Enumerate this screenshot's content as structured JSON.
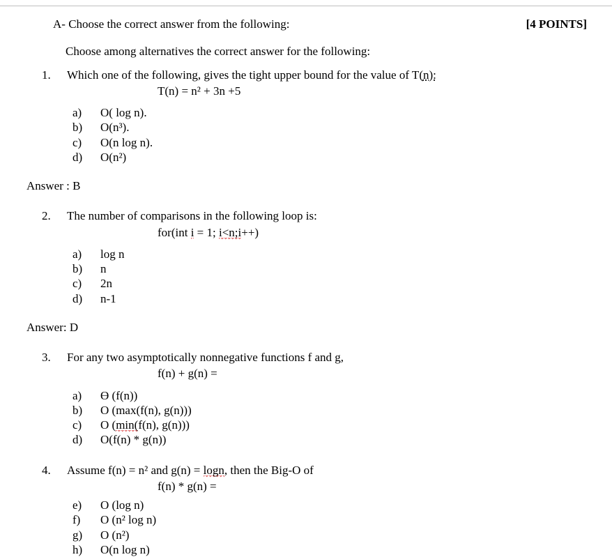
{
  "header": {
    "section_label": "A- Choose the correct answer from the following:",
    "points": "[4 POINTS]"
  },
  "instruction": "Choose among alternatives the correct answer for the following:",
  "q1": {
    "num": "1.",
    "text_pre": "Which one of the following, gives the tight upper bound for the value of T(",
    "text_n": "n):",
    "equation": "T(n) = n² + 3n +5",
    "opts": {
      "a": {
        "label": "a)",
        "text": "O( log n)."
      },
      "b": {
        "label": "b)",
        "text": "O(n³)."
      },
      "c": {
        "label": "c)",
        "text": "O(n log n)."
      },
      "d": {
        "label": "d)",
        "text": "O(n²)"
      }
    },
    "answer": "Answer : B"
  },
  "q2": {
    "num": "2.",
    "text": "The number of comparisons in the following loop is:",
    "equation_pre": "for(int ",
    "equation_i": "i",
    "equation_mid": " = 1; ",
    "equation_in": "i<n;i",
    "equation_post": "++)",
    "opts": {
      "a": {
        "label": "a)",
        "text": "log n"
      },
      "b": {
        "label": "b)",
        "text": "n"
      },
      "c": {
        "label": "c)",
        "text": "2n"
      },
      "d": {
        "label": "d)",
        "text": "n-1"
      }
    },
    "answer": "Answer: D"
  },
  "q3": {
    "num": "3.",
    "text": "For any two asymptotically nonnegative functions  f  and g,",
    "equation": "f(n) + g(n) =",
    "opts": {
      "a": {
        "label": "a)",
        "text": "ϴ (f(n))"
      },
      "b": {
        "label": "b)",
        "text": "O (max(f(n), g(n)))"
      },
      "c": {
        "label": "c)",
        "pre": "O (",
        "u": "min(",
        "post": "f(n), g(n)))"
      },
      "d": {
        "label": "d)",
        "text": "O(f(n) * g(n))"
      }
    }
  },
  "q4": {
    "num": "4.",
    "text_pre": "Assume  f(n) = n²  and g(n) = ",
    "text_logn": "logn",
    "text_post": ", then the Big-O of",
    "equation": "f(n) * g(n) =",
    "opts": {
      "e": {
        "label": "e)",
        "text": "O (log n)"
      },
      "f": {
        "label": "f)",
        "text": "O (n² log n)"
      },
      "g": {
        "label": "g)",
        "text": "O (n²)"
      },
      "h": {
        "label": "h)",
        "text": "O(n log n)"
      }
    }
  }
}
